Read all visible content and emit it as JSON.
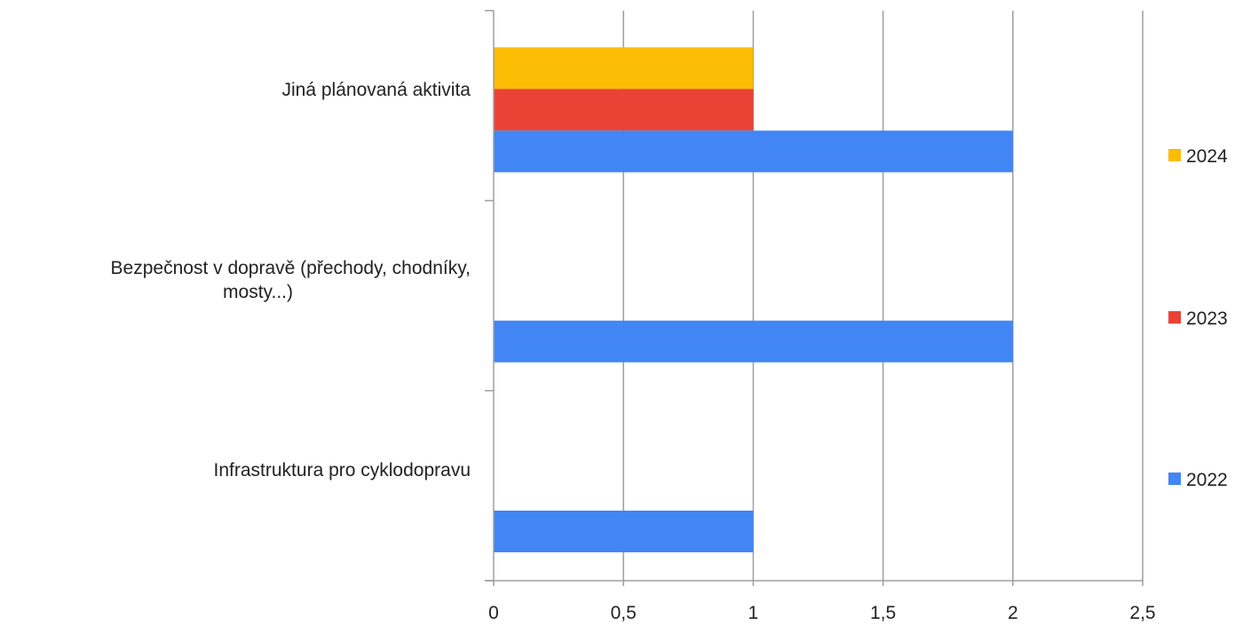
{
  "chart_data": {
    "type": "bar",
    "orientation": "horizontal",
    "categories": [
      [
        "Jiná plánovaná aktivita"
      ],
      [
        "Bezpečnost v dopravě (přechody, chodníky,",
        "mosty...)"
      ],
      [
        "Infrastruktura pro cyklodopravu"
      ]
    ],
    "series": [
      {
        "name": "2024",
        "color": "#fbbc04",
        "values": [
          1,
          null,
          null
        ]
      },
      {
        "name": "2023",
        "color": "#ea4335",
        "values": [
          1,
          null,
          null
        ]
      },
      {
        "name": "2022",
        "color": "#4285f4",
        "values": [
          2,
          2,
          1
        ]
      }
    ],
    "xlim": [
      0,
      2.5
    ],
    "ticks": [
      0,
      0.5,
      1,
      1.5,
      2,
      2.5
    ],
    "tick_labels": [
      "0",
      "0,5",
      "1",
      "1,5",
      "2",
      "2,5"
    ],
    "legend_position": "right",
    "grid": true
  }
}
